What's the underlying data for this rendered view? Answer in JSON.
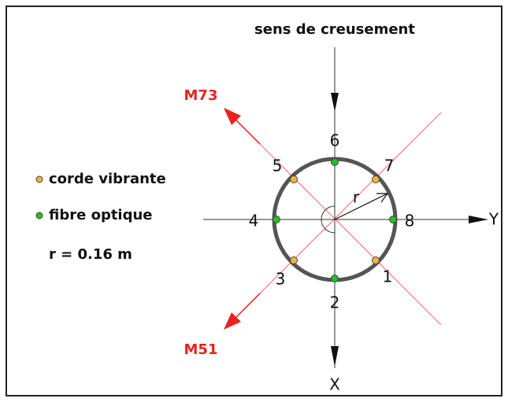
{
  "title": "sens de creusement",
  "directions": {
    "upper": "M73",
    "lower": "M51"
  },
  "axes": {
    "x": "X",
    "y": "Y"
  },
  "legend": {
    "vibrating": "corde vibrante",
    "optical": "fibre optique",
    "radius": "r = 0.16 m"
  },
  "radius_label": "r",
  "points": [
    "1",
    "2",
    "3",
    "4",
    "5",
    "6",
    "7",
    "8"
  ]
}
